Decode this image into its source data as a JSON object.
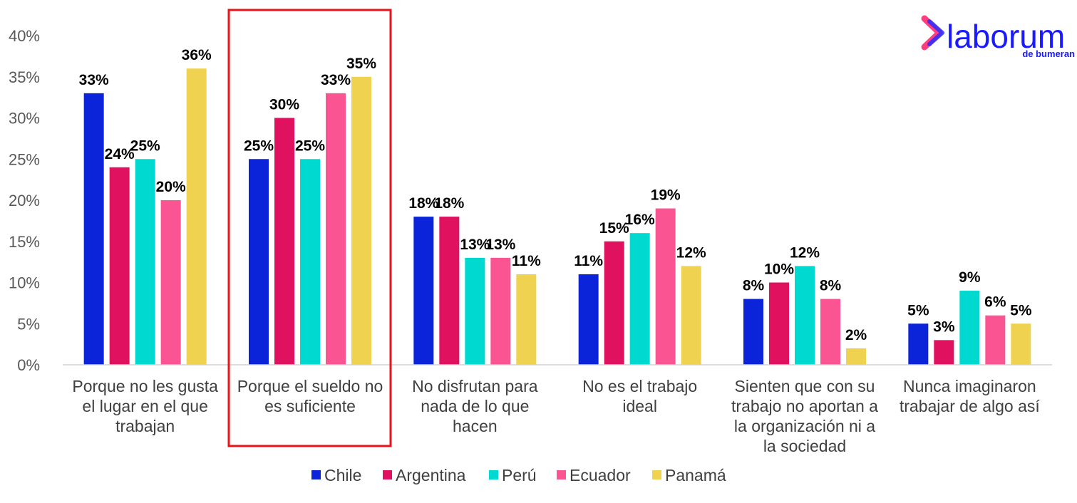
{
  "chart_data": {
    "type": "bar",
    "categories": [
      [
        "Porque no les gusta",
        "el lugar en el que",
        "trabajan"
      ],
      [
        "Porque el sueldo no",
        "es suficiente"
      ],
      [
        "No disfrutan para",
        "nada de lo que",
        "hacen"
      ],
      [
        "No es el trabajo",
        "ideal"
      ],
      [
        "Sienten que con su",
        "trabajo no aportan a",
        "la organización ni a",
        "la sociedad"
      ],
      [
        "Nunca imaginaron",
        "trabajar de algo así"
      ]
    ],
    "series": [
      {
        "name": "Chile",
        "color": "#0b24d9",
        "values": [
          33,
          25,
          18,
          11,
          8,
          5
        ]
      },
      {
        "name": "Argentina",
        "color": "#e0115f",
        "values": [
          24,
          30,
          18,
          15,
          10,
          3
        ]
      },
      {
        "name": "Perú",
        "color": "#00d9cf",
        "values": [
          25,
          25,
          13,
          16,
          12,
          9
        ]
      },
      {
        "name": "Ecuador",
        "color": "#fa5592",
        "values": [
          20,
          33,
          13,
          19,
          8,
          6
        ]
      },
      {
        "name": "Panamá",
        "color": "#efd24f",
        "values": [
          36,
          35,
          11,
          12,
          2,
          5
        ]
      }
    ],
    "y_ticks": [
      "0%",
      "5%",
      "10%",
      "15%",
      "20%",
      "25%",
      "30%",
      "35%",
      "40%"
    ],
    "ylim": [
      0,
      40
    ],
    "value_suffix": "%",
    "legend_position": "bottom",
    "grid": false,
    "highlighted_category_index": 1,
    "highlight_color": "#e8141a"
  },
  "logo": {
    "brand": "laborum",
    "sub": "de bumeran",
    "color": "#1a1aff",
    "accent_colors": [
      "#ff3d7f",
      "#2b2bff"
    ]
  }
}
